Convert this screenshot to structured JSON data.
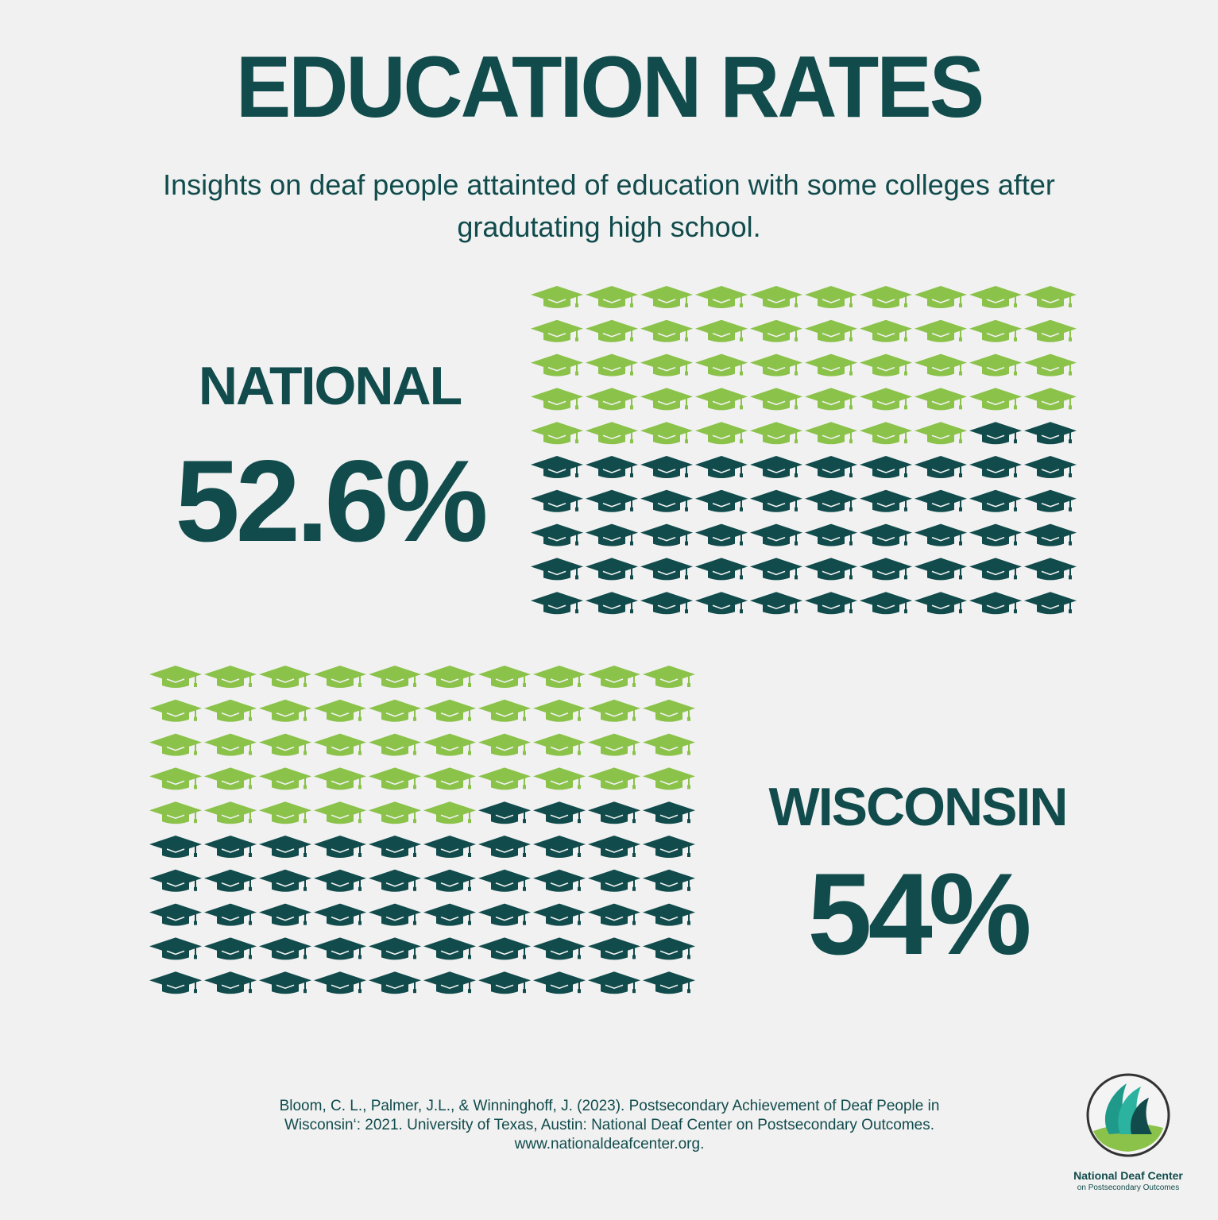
{
  "header": {
    "title": "EDUCATION RATES",
    "subtitle_line1": "Insights on deaf people attainted of education with some colleges after",
    "subtitle_line2": "gradutating high school."
  },
  "chart_data": [
    {
      "type": "pictograph",
      "label": "NATIONAL",
      "value_text": "52.6%",
      "value": 52.6,
      "icon": "graduation-cap-icon",
      "rows": 10,
      "cols": 10,
      "filled_icons": 52,
      "fill_color": "#114b4c",
      "empty_color": "#8bc24a"
    },
    {
      "type": "pictograph",
      "label": "WISCONSIN",
      "value_text": "54%",
      "value": 54,
      "icon": "graduation-cap-icon",
      "rows": 10,
      "cols": 10,
      "filled_icons": 54,
      "fill_color": "#114b4c",
      "empty_color": "#8bc24a"
    }
  ],
  "citation": {
    "line1": "Bloom, C. L., Palmer, J.L., & Winninghoff, J. (2023). Postsecondary Achievement of Deaf People in",
    "line2": "Wisconsin‘: 2021. University of Texas, Austin: National Deaf Center on Postsecondary Outcomes.",
    "line3": "www.nationaldeafcenter.org."
  },
  "logo": {
    "name": "National Deaf Center",
    "tagline": "on Postsecondary Outcomes",
    "icon": "national-deaf-center-logo-icon"
  }
}
